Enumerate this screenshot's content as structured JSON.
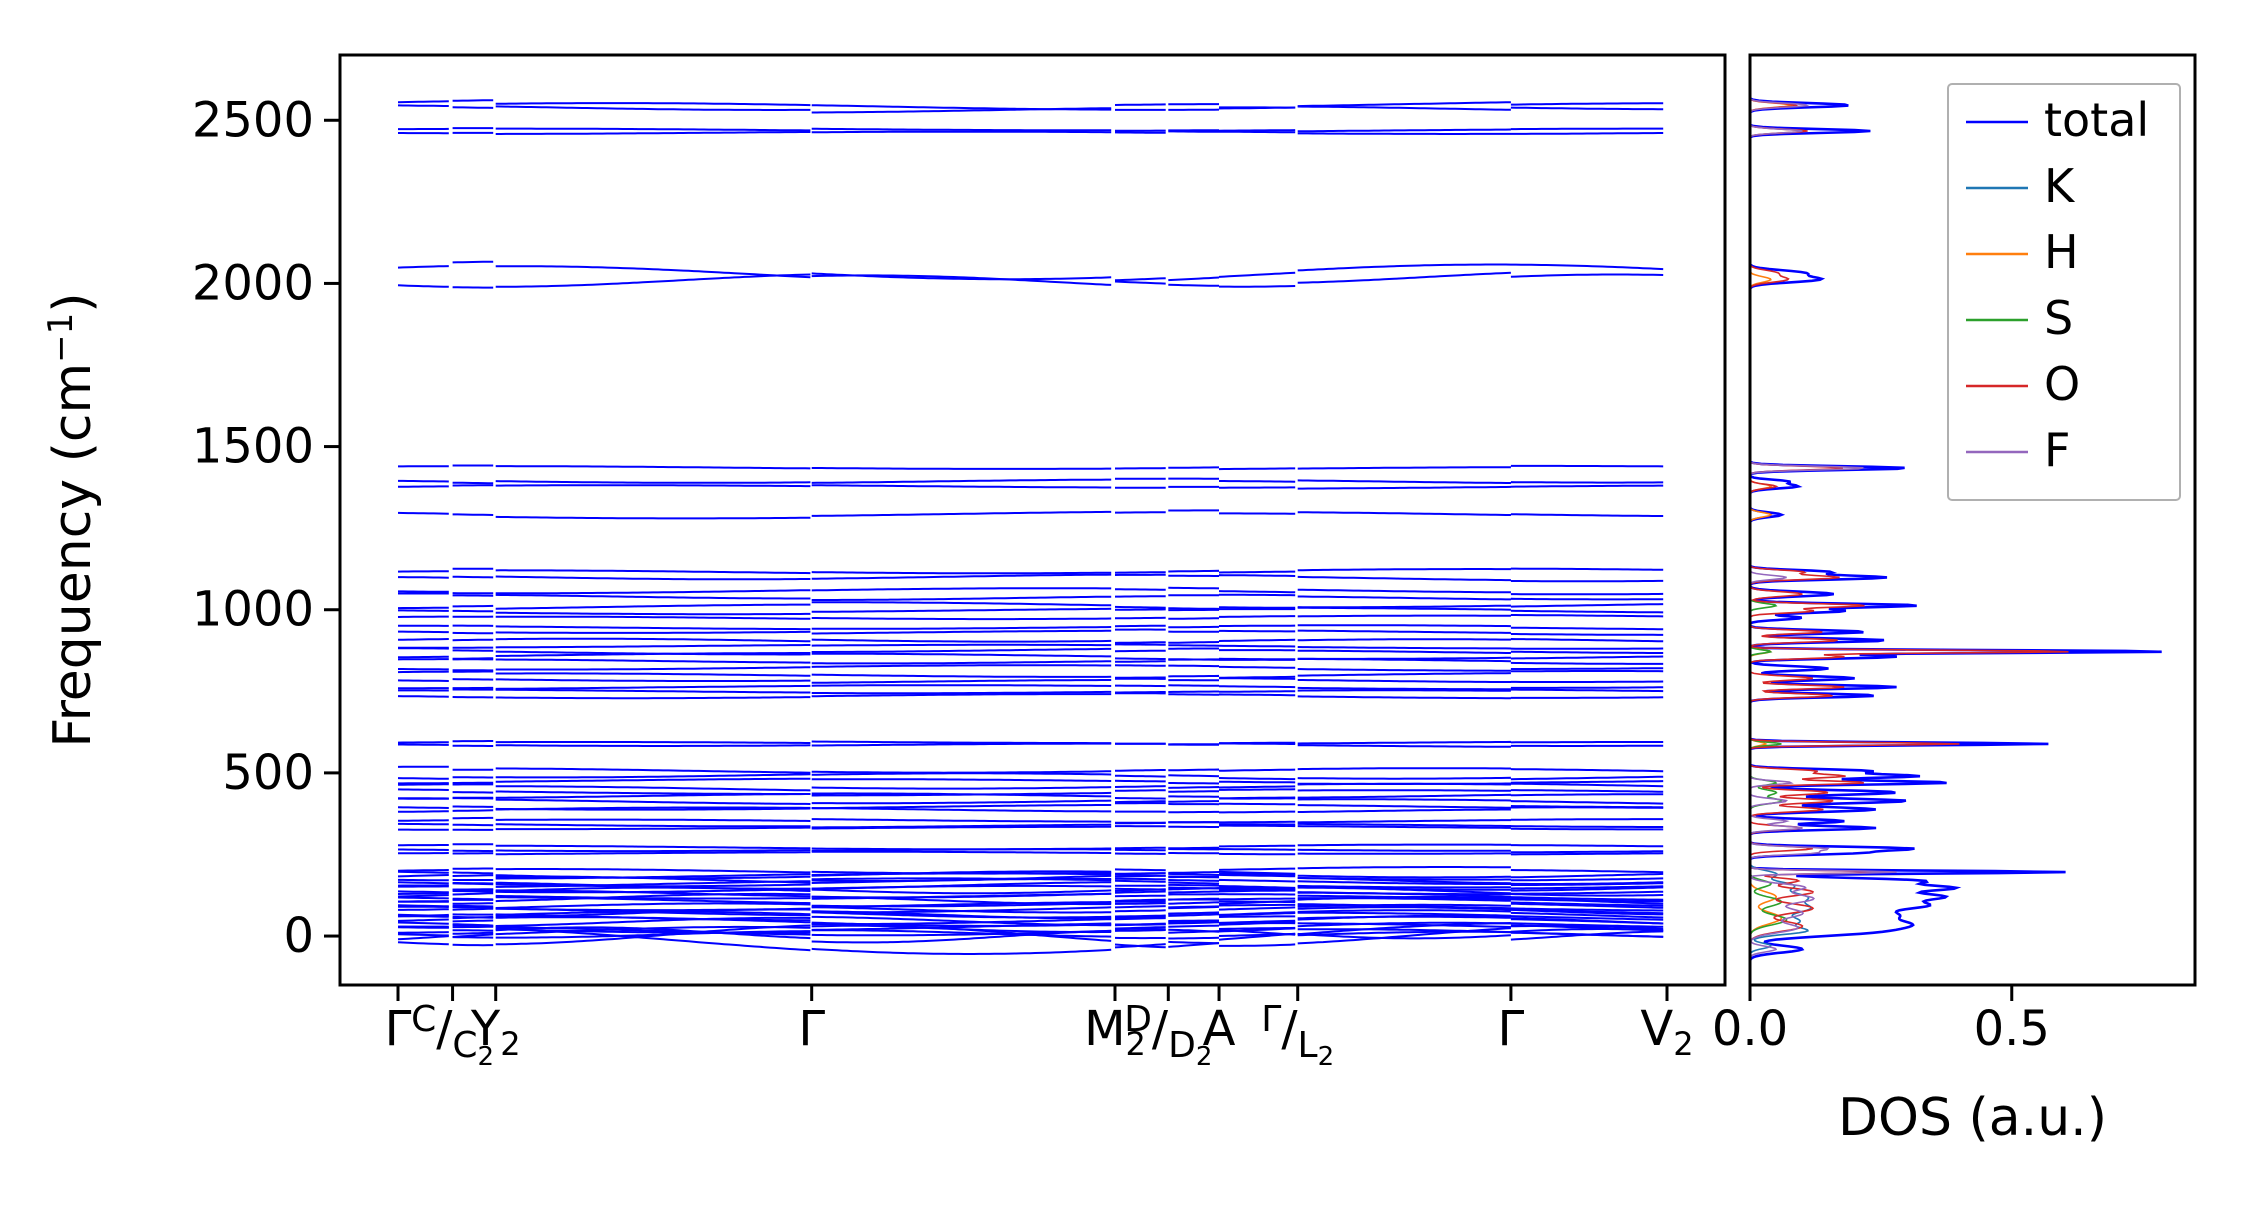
{
  "figure": {
    "background": "#ffffff",
    "axis_color": "#000000",
    "ylabel": {
      "prefix": "Frequency (cm",
      "sup": "−1",
      "suffix": ")"
    },
    "dos_xlabel": "DOS (a.u.)"
  },
  "chart_data": {
    "type": "line",
    "title": "",
    "band_structure": {
      "ylabel": "Frequency (cm^-1)",
      "ylim": [
        -150,
        2700
      ],
      "yticks": [
        0,
        500,
        1000,
        1500,
        2000,
        2500
      ],
      "line_color": "#0000ff",
      "kpath_ticks": [
        {
          "pos": 0.0,
          "kind": "plain",
          "text": "Γ"
        },
        {
          "pos": 0.043,
          "kind": "jump",
          "top": "C",
          "bottom": "C",
          "bsub": "2"
        },
        {
          "pos": 0.077,
          "kind": "sub",
          "text": "Y",
          "sub": "2"
        },
        {
          "pos": 0.326,
          "kind": "plain",
          "text": "Γ"
        },
        {
          "pos": 0.565,
          "kind": "sub",
          "text": "M",
          "sub": "2"
        },
        {
          "pos": 0.607,
          "kind": "jump",
          "top": "D",
          "bottom": "D",
          "bsub": "2"
        },
        {
          "pos": 0.647,
          "kind": "plain",
          "text": "A"
        },
        {
          "pos": 0.709,
          "kind": "jump",
          "top": "Γ",
          "bottom": "L",
          "bsub": "2"
        },
        {
          "pos": 0.877,
          "kind": "plain",
          "text": "Γ"
        },
        {
          "pos": 1.0,
          "kind": "sub",
          "text": "V",
          "sub": "2"
        }
      ],
      "segment_bounds": [
        0,
        0.043,
        0.077,
        0.326,
        0.565,
        0.607,
        0.647,
        0.709,
        0.877,
        1.0
      ],
      "bands": [
        [
          2548,
          10,
          1.2,
          0.3
        ],
        [
          2537,
          8,
          1.4,
          2.1
        ],
        [
          2471,
          5,
          1.1,
          1.0
        ],
        [
          2463,
          4,
          1.3,
          4.2
        ],
        [
          2032,
          26,
          1.3,
          0.8
        ],
        [
          2012,
          20,
          1.7,
          3.9
        ],
        [
          1435,
          5,
          1.2,
          1.1
        ],
        [
          1392,
          6,
          1.4,
          2.6
        ],
        [
          1378,
          5,
          1.1,
          0.4
        ],
        [
          1291,
          8,
          1.2,
          3.0
        ],
        [
          1116,
          6,
          1.3,
          0.9
        ],
        [
          1099,
          7,
          1.5,
          2.2
        ],
        [
          1057,
          8,
          1.2,
          4.0
        ],
        [
          1040,
          6,
          1.6,
          1.4
        ],
        [
          1013,
          8,
          1.3,
          5.0
        ],
        [
          996,
          6,
          1.2,
          2.8
        ],
        [
          976,
          5,
          1.4,
          0.6
        ],
        [
          946,
          5,
          1.3,
          1.8
        ],
        [
          931,
          6,
          1.2,
          3.4
        ],
        [
          906,
          7,
          1.5,
          0.2
        ],
        [
          889,
          5,
          1.1,
          4.6
        ],
        [
          873,
          6,
          1.4,
          2.0
        ],
        [
          856,
          7,
          1.2,
          5.4
        ],
        [
          841,
          5,
          1.6,
          1.0
        ],
        [
          821,
          6,
          1.3,
          3.8
        ],
        [
          801,
          7,
          1.2,
          0.7
        ],
        [
          783,
          5,
          1.5,
          2.4
        ],
        [
          766,
          6,
          1.1,
          4.9
        ],
        [
          749,
          5,
          1.3,
          1.5
        ],
        [
          736,
          5,
          1.4,
          3.1
        ],
        [
          593,
          4,
          1.2,
          0.5
        ],
        [
          585,
          4,
          1.4,
          2.9
        ],
        [
          506,
          8,
          1.3,
          1.2
        ],
        [
          489,
          7,
          1.5,
          3.6
        ],
        [
          473,
          6,
          1.2,
          5.1
        ],
        [
          456,
          8,
          1.4,
          0.9
        ],
        [
          441,
          7,
          1.1,
          2.5
        ],
        [
          429,
          6,
          1.6,
          4.3
        ],
        [
          413,
          8,
          1.3,
          1.7
        ],
        [
          399,
          7,
          1.2,
          3.3
        ],
        [
          386,
          6,
          1.5,
          5.5
        ],
        [
          353,
          6,
          1.2,
          0.4
        ],
        [
          341,
          5,
          1.4,
          2.2
        ],
        [
          331,
          5,
          1.1,
          4.0
        ],
        [
          273,
          5,
          1.3,
          1.1
        ],
        [
          263,
          4,
          1.5,
          3.0
        ],
        [
          255,
          4,
          1.2,
          5.2
        ],
        [
          199,
          8,
          1.4,
          0.6
        ],
        [
          191,
          9,
          1.7,
          2.3
        ],
        [
          183,
          9,
          1.3,
          4.1
        ],
        [
          175,
          10,
          1.9,
          0.2
        ],
        [
          167,
          9,
          1.5,
          2.8
        ],
        [
          159,
          11,
          1.2,
          4.7
        ],
        [
          151,
          10,
          1.8,
          1.3
        ],
        [
          143,
          9,
          1.4,
          3.5
        ],
        [
          135,
          11,
          2.0,
          5.3
        ],
        [
          127,
          10,
          1.6,
          0.8
        ],
        [
          119,
          9,
          1.3,
          2.6
        ],
        [
          111,
          12,
          1.9,
          4.4
        ],
        [
          103,
          10,
          1.5,
          1.0
        ],
        [
          95,
          11,
          1.2,
          3.2
        ],
        [
          87,
          10,
          1.8,
          5.0
        ],
        [
          79,
          12,
          1.4,
          1.6
        ],
        [
          71,
          11,
          2.1,
          3.8
        ],
        [
          63,
          12,
          1.7,
          5.6
        ],
        [
          55,
          12,
          1.3,
          2.0
        ],
        [
          47,
          13,
          1.9,
          4.2
        ],
        [
          39,
          13,
          1.5,
          0.3
        ],
        [
          31,
          13,
          1.2,
          2.7
        ],
        [
          22,
          14,
          1.8,
          4.8
        ],
        [
          14,
          13,
          1.4,
          1.4
        ],
        [
          8,
          10,
          2.0,
          3.6
        ],
        [
          -8,
          45,
          1.1,
          1.6
        ],
        [
          0,
          30,
          1.7,
          4.0
        ],
        [
          5,
          18,
          2.3,
          5.7
        ]
      ]
    },
    "dos": {
      "xlabel": "DOS (a.u.)",
      "xlim": [
        0,
        0.85
      ],
      "xticks": [
        {
          "value": 0.0,
          "label": "0.0"
        },
        {
          "value": 0.5,
          "label": "0.5"
        }
      ],
      "legend_position": "upper right",
      "series": [
        {
          "name": "total",
          "color": "#0000ff",
          "width": 2.6,
          "peaks": [
            [
              -40,
              15,
              0.1
            ],
            [
              10,
              18,
              0.18
            ],
            [
              35,
              20,
              0.26
            ],
            [
              65,
              20,
              0.24
            ],
            [
              95,
              18,
              0.3
            ],
            [
              122,
              16,
              0.33
            ],
            [
              148,
              14,
              0.36
            ],
            [
              170,
              12,
              0.3
            ],
            [
              196,
              6,
              0.6
            ],
            [
              255,
              8,
              0.2
            ],
            [
              268,
              8,
              0.3
            ],
            [
              331,
              8,
              0.24
            ],
            [
              352,
              9,
              0.18
            ],
            [
              388,
              10,
              0.24
            ],
            [
              414,
              10,
              0.3
            ],
            [
              440,
              10,
              0.28
            ],
            [
              470,
              8,
              0.38
            ],
            [
              490,
              9,
              0.32
            ],
            [
              506,
              8,
              0.22
            ],
            [
              589,
              6,
              0.57
            ],
            [
              737,
              8,
              0.24
            ],
            [
              763,
              8,
              0.28
            ],
            [
              790,
              9,
              0.2
            ],
            [
              820,
              9,
              0.15
            ],
            [
              856,
              8,
              0.28
            ],
            [
              872,
              6,
              0.8
            ],
            [
              906,
              8,
              0.26
            ],
            [
              932,
              8,
              0.22
            ],
            [
              975,
              8,
              0.1
            ],
            [
              996,
              8,
              0.18
            ],
            [
              1013,
              8,
              0.32
            ],
            [
              1048,
              10,
              0.16
            ],
            [
              1099,
              9,
              0.26
            ],
            [
              1116,
              8,
              0.15
            ],
            [
              1291,
              10,
              0.06
            ],
            [
              1378,
              9,
              0.09
            ],
            [
              1393,
              8,
              0.07
            ],
            [
              1434,
              8,
              0.3
            ],
            [
              2012,
              12,
              0.13
            ],
            [
              2032,
              12,
              0.1
            ],
            [
              2467,
              8,
              0.23
            ],
            [
              2546,
              9,
              0.19
            ]
          ]
        },
        {
          "name": "K",
          "color": "#1f77b4",
          "width": 1.6,
          "peaks": [
            [
              -30,
              12,
              0.04
            ],
            [
              15,
              15,
              0.1
            ],
            [
              45,
              20,
              0.09
            ],
            [
              85,
              22,
              0.11
            ],
            [
              120,
              20,
              0.1
            ],
            [
              155,
              18,
              0.08
            ],
            [
              190,
              15,
              0.05
            ]
          ]
        },
        {
          "name": "H",
          "color": "#ff7f0e",
          "width": 1.6,
          "peaks": [
            [
              55,
              25,
              0.06
            ],
            [
              120,
              22,
              0.05
            ],
            [
              589,
              8,
              0.03
            ],
            [
              872,
              8,
              0.04
            ],
            [
              1291,
              10,
              0.04
            ],
            [
              1378,
              10,
              0.04
            ],
            [
              2012,
              12,
              0.04
            ],
            [
              2467,
              8,
              0.1
            ],
            [
              2546,
              9,
              0.08
            ]
          ]
        },
        {
          "name": "S",
          "color": "#2ca02c",
          "width": 1.6,
          "peaks": [
            [
              50,
              22,
              0.07
            ],
            [
              105,
              20,
              0.06
            ],
            [
              160,
              15,
              0.04
            ],
            [
              414,
              12,
              0.06
            ],
            [
              440,
              12,
              0.05
            ],
            [
              470,
              10,
              0.05
            ],
            [
              589,
              7,
              0.06
            ],
            [
              872,
              7,
              0.04
            ],
            [
              1013,
              9,
              0.05
            ]
          ]
        },
        {
          "name": "O",
          "color": "#d62728",
          "width": 1.6,
          "peaks": [
            [
              30,
              22,
              0.1
            ],
            [
              85,
              22,
              0.12
            ],
            [
              135,
              18,
              0.12
            ],
            [
              170,
              12,
              0.09
            ],
            [
              196,
              6,
              0.25
            ],
            [
              268,
              9,
              0.12
            ],
            [
              331,
              9,
              0.1
            ],
            [
              388,
              10,
              0.14
            ],
            [
              414,
              10,
              0.16
            ],
            [
              440,
              10,
              0.15
            ],
            [
              470,
              8,
              0.22
            ],
            [
              490,
              9,
              0.18
            ],
            [
              506,
              8,
              0.12
            ],
            [
              589,
              6,
              0.4
            ],
            [
              737,
              8,
              0.16
            ],
            [
              763,
              8,
              0.18
            ],
            [
              790,
              9,
              0.12
            ],
            [
              856,
              8,
              0.18
            ],
            [
              872,
              6,
              0.62
            ],
            [
              906,
              8,
              0.17
            ],
            [
              932,
              8,
              0.14
            ],
            [
              996,
              8,
              0.12
            ],
            [
              1013,
              8,
              0.22
            ],
            [
              1048,
              10,
              0.1
            ],
            [
              1099,
              9,
              0.17
            ],
            [
              1116,
              8,
              0.1
            ],
            [
              1378,
              9,
              0.05
            ],
            [
              1434,
              8,
              0.18
            ],
            [
              2012,
              12,
              0.07
            ],
            [
              2032,
              12,
              0.05
            ],
            [
              2467,
              8,
              0.11
            ],
            [
              2546,
              9,
              0.09
            ]
          ]
        },
        {
          "name": "F",
          "color": "#9467bd",
          "width": 1.6,
          "peaks": [
            [
              -40,
              12,
              0.05
            ],
            [
              25,
              20,
              0.09
            ],
            [
              70,
              22,
              0.1
            ],
            [
              115,
              20,
              0.12
            ],
            [
              150,
              15,
              0.1
            ],
            [
              196,
              6,
              0.28
            ],
            [
              255,
              8,
              0.12
            ],
            [
              268,
              8,
              0.14
            ],
            [
              331,
              8,
              0.1
            ],
            [
              352,
              9,
              0.07
            ],
            [
              414,
              10,
              0.07
            ],
            [
              470,
              8,
              0.08
            ],
            [
              1099,
              9,
              0.07
            ],
            [
              1434,
              8,
              0.22
            ],
            [
              2467,
              8,
              0.1
            ],
            [
              2546,
              9,
              0.11
            ]
          ]
        }
      ]
    }
  }
}
